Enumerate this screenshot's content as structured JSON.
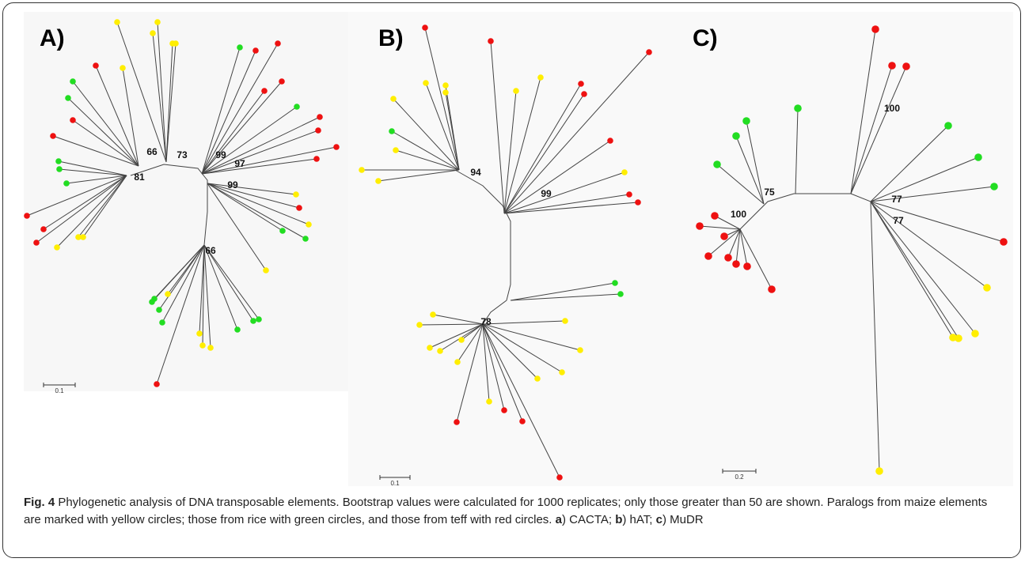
{
  "panels": [
    {
      "label": "A)",
      "bootstrap": [
        66,
        73,
        81,
        99,
        97,
        99,
        66
      ],
      "scale": "0.1"
    },
    {
      "label": "B)",
      "bootstrap": [
        94,
        99,
        78
      ],
      "scale": "0.1"
    },
    {
      "label": "C)",
      "bootstrap": [
        100,
        75,
        100,
        77,
        77
      ],
      "scale": "0.2"
    }
  ],
  "caption": [
    {
      "text": "Fig. 4",
      "bold": true
    },
    {
      "text": " Phylogenetic analysis of DNA transposable elements. Bootstrap values were calculated for 1000 replicates; only those greater than 50 are shown. Paralogs from maize elements are marked with yellow circles; those from rice with green circles, and those from teff with red circles. ",
      "bold": false
    },
    {
      "text": "a",
      "bold": true
    },
    {
      "text": ") CACTA; ",
      "bold": false
    },
    {
      "text": "b",
      "bold": true
    },
    {
      "text": ") hAT; ",
      "bold": false
    },
    {
      "text": "c",
      "bold": true
    },
    {
      "text": ") MuDR",
      "bold": false
    }
  ]
}
